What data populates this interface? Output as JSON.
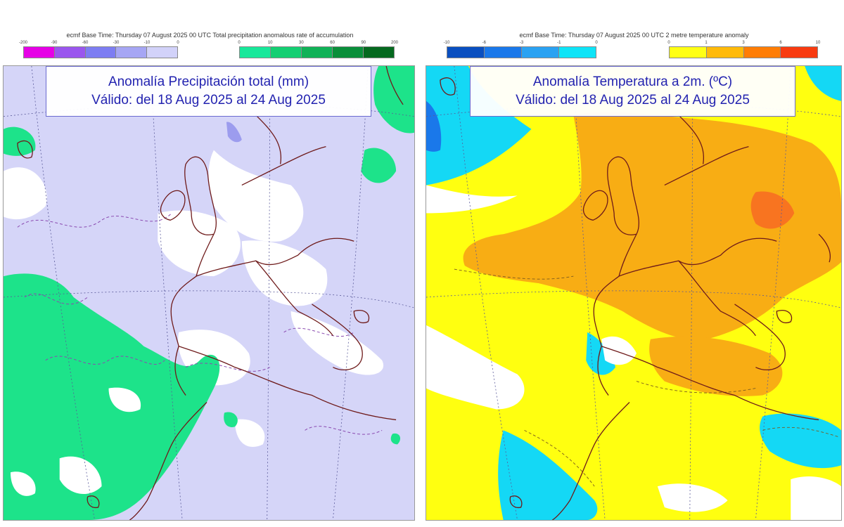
{
  "left_panel": {
    "header": "ecmf  Base Time: Thursday 07 August 2025 00 UTC Total precipitation anomalous rate of accumulation",
    "title_line1": "Anomalía Precipitación total (mm)",
    "title_line2": "Válido: del 18 Aug 2025 al 24 Aug 2025",
    "colorbar_dry": {
      "ticks": [
        "-200",
        "-90",
        "-60",
        "-30",
        "-10",
        "0"
      ],
      "colors": [
        "#e600e6",
        "#9a56ee",
        "#7d7df2",
        "#a6a6f4",
        "#d2d2f9"
      ]
    },
    "colorbar_wet": {
      "ticks": [
        "0",
        "10",
        "30",
        "60",
        "90",
        "200"
      ],
      "colors": [
        "#18e89a",
        "#14cf72",
        "#10b257",
        "#0a8f3a",
        "#05691f"
      ]
    },
    "map_colors": {
      "background": "#d5d5f8",
      "dry_light": "#ffffff",
      "wet": "#1de38a",
      "purple": "#9c9cee",
      "coast": "#6e1a1a"
    }
  },
  "right_panel": {
    "header": "ecmf  Base Time: Thursday 07 August 2025 00 UTC 2 metre temperature anomaly",
    "title_line1": "Anomalía Temperatura a 2m. (ºC)",
    "title_line2": "Válido: del 18 Aug 2025 al 24 Aug 2025",
    "colorbar_cold": {
      "ticks": [
        "-10",
        "-6",
        "-3",
        "-1",
        "0"
      ],
      "colors": [
        "#0a4fc0",
        "#1a78ea",
        "#2aa2f2",
        "#0ee4f7"
      ]
    },
    "colorbar_warm": {
      "ticks": [
        "0",
        "1",
        "3",
        "6",
        "10"
      ],
      "colors": [
        "#ffff14",
        "#ffba0a",
        "#ff7d05",
        "#f83b10"
      ]
    },
    "map_colors": {
      "background": "#ffff10",
      "neutral": "#ffffff",
      "cold": "#14d8f5",
      "warm": "#f8ad14",
      "hot": "#f87420",
      "coast": "#6e1a1a"
    }
  }
}
